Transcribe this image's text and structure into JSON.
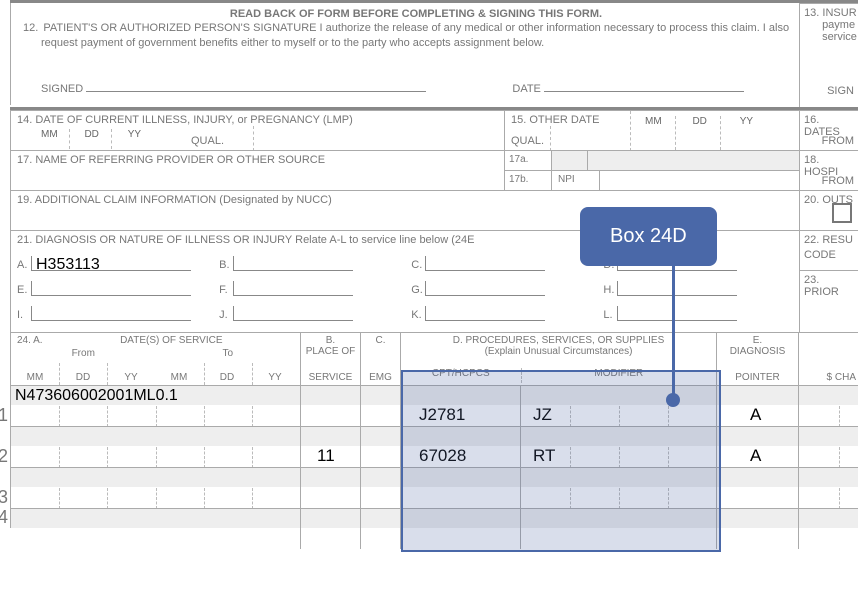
{
  "header": {
    "readback": "READ BACK OF FORM BEFORE COMPLETING & SIGNING THIS FORM.",
    "box12_num": "12.",
    "box12_title": "PATIENT'S OR AUTHORIZED PERSON'S SIGNATURE",
    "box12_body": "  I authorize the release of any medical or other information necessary to process this claim. I also request payment of government benefits either to myself or to the party who accepts assignment below.",
    "signed": "SIGNED",
    "date": "DATE",
    "box13_num": "13.",
    "box13a": "INSUR",
    "box13b": "payme",
    "box13c": "service",
    "sign2": "SIGN"
  },
  "box14": {
    "label": "14. DATE OF CURRENT ILLNESS, INJURY, or PREGNANCY (LMP)",
    "mm": "MM",
    "dd": "DD",
    "yy": "YY",
    "qual": "QUAL."
  },
  "box15": {
    "label": "15. OTHER DATE",
    "qual": "QUAL.",
    "mm": "MM",
    "dd": "DD",
    "yy": "YY"
  },
  "box16": {
    "label": "16. DATES",
    "from": "FROM"
  },
  "box17": {
    "label": "17. NAME OF REFERRING PROVIDER OR OTHER SOURCE",
    "a": "17a.",
    "b": "17b.",
    "npi": "NPI"
  },
  "box18": {
    "label": "18. HOSPI",
    "from": "FROM"
  },
  "box19": {
    "label": "19. ADDITIONAL CLAIM INFORMATION (Designated by NUCC)"
  },
  "box20": {
    "label": "20. OUTS"
  },
  "box21": {
    "label": "21. DIAGNOSIS OR NATURE OF ILLNESS OR INJURY  Relate A-L to service line below (24E",
    "letters": [
      "A.",
      "B.",
      "C.",
      "D.",
      "E.",
      "F.",
      "G.",
      "H.",
      "I.",
      "J.",
      "K.",
      "L."
    ],
    "value_a": "H353113"
  },
  "box22": {
    "label": "22. RESU",
    "code": "CODE"
  },
  "box23": {
    "label": "23. PRIOR"
  },
  "box24": {
    "a": "24.  A.",
    "dates": "DATE(S) OF SERVICE",
    "from": "From",
    "to": "To",
    "mm": "MM",
    "dd": "DD",
    "yy": "YY",
    "b": "B.",
    "place": "PLACE OF",
    "service": "SERVICE",
    "c": "C.",
    "emg": "EMG",
    "d": "D.  PROCEDURES, SERVICES, OR SUPPLIES",
    "explain": "(Explain Unusual Circumstances)",
    "cpt": "CPT/HCPCS",
    "mod": "MODIFIER",
    "e": "E.",
    "diag": "DIAGNOSIS",
    "pointer": "POINTER",
    "chg": "$ CHA"
  },
  "rows": [
    {
      "shaded_text": "N473606002001ML0.1",
      "cpt": "J2781",
      "mod": "JZ",
      "ptr": "A",
      "pos": ""
    },
    {
      "shaded_text": "",
      "cpt": "67028",
      "mod": "RT",
      "ptr": "A",
      "pos": "11"
    },
    {
      "shaded_text": "",
      "cpt": "",
      "mod": "",
      "ptr": "",
      "pos": ""
    }
  ],
  "callout": {
    "label": "Box 24D"
  },
  "colors": {
    "callout": "#4a68a8",
    "highlight_fill": "rgba(80,105,165,0.22)"
  }
}
